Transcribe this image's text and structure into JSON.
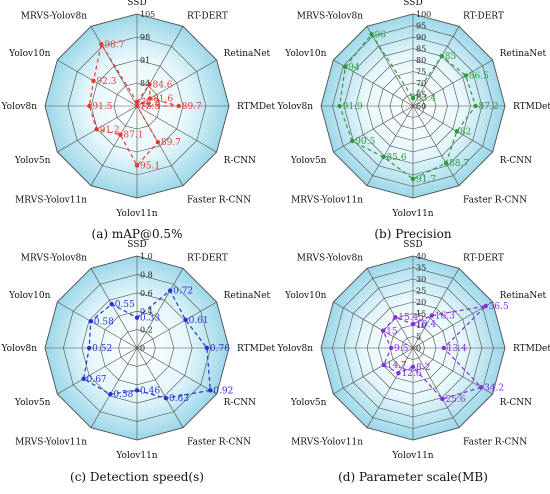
{
  "chart_data": [
    {
      "type": "radar",
      "caption": "(a) mAP@0.5%",
      "axes": [
        "SSD",
        "RT-DERT",
        "RetinaNet",
        "RTMDet",
        "R-CNN",
        "Faster R-CNN",
        "Yolov11n",
        "MRVS-Yolov11n",
        "Yolov5n",
        "Yolov8n",
        "Yolov10n",
        "MRVS-Yolov8n"
      ],
      "ticks": [
        "77",
        "84",
        "91",
        "98",
        "105"
      ],
      "range": [
        77,
        105
      ],
      "values": [
        78.2,
        84.6,
        81.6,
        89.7,
        75.3,
        89.7,
        95.1,
        87.1,
        91.2,
        91.5,
        92.3,
        98.7
      ],
      "labels": [
        "78.2",
        "84.6",
        "81.6",
        "89.7",
        "75.3",
        "89.7",
        "95.1",
        "87.1",
        "91.2",
        "91.5",
        "92.3",
        "98.7"
      ],
      "color": "#e8392f"
    },
    {
      "type": "radar",
      "caption": "(b) Precision",
      "axes": [
        "SSD",
        "RT-DERT",
        "RetinaNet",
        "RTMDet",
        "R-CNN",
        "Faster R-CNN",
        "Yolov11n",
        "MRVS-Yolov11n",
        "Yolov5n",
        "Yolov8n",
        "Yolov10n",
        "MRVS-Yolov8n"
      ],
      "ticks": [
        "60",
        "65",
        "70",
        "75",
        "80",
        "85",
        "90",
        "95",
        "100"
      ],
      "range": [
        60,
        100
      ],
      "values": [
        63.4,
        85,
        86.5,
        87.2,
        82,
        88.7,
        91.7,
        85.6,
        90.5,
        91.9,
        94,
        96
      ],
      "labels": [
        "63.4",
        "85",
        "86.5",
        "87.2",
        "82",
        "88.7",
        "91.7",
        "85.6",
        "90.5",
        "91.9",
        "94",
        "96"
      ],
      "color": "#2e9a3a"
    },
    {
      "type": "radar",
      "caption": "(c) Detection speed(s)",
      "axes": [
        "SSD",
        "RT-DERT",
        "RetinaNet",
        "RTMDet",
        "R-CNN",
        "Faster R-CNN",
        "Yolov11n",
        "MRVS-Yolov11n",
        "Yolov5n",
        "Yolov8n",
        "Yolov10n",
        "MRVS-Yolov8n"
      ],
      "ticks": [
        "0",
        "0.2",
        "0.4",
        "0.6",
        "0.8",
        "1.0"
      ],
      "range": [
        0,
        1.0
      ],
      "values": [
        0.33,
        0.72,
        0.61,
        0.76,
        0.92,
        0.63,
        0.46,
        0.58,
        0.67,
        0.52,
        0.58,
        0.55
      ],
      "labels": [
        "0.33",
        "0.72",
        "0.61",
        "0.76",
        "0.92",
        "0.63",
        "0.46",
        "0.58",
        "0.67",
        "0.52",
        "0.58",
        "0.55"
      ],
      "color": "#2430d8"
    },
    {
      "type": "radar",
      "caption": "(d) Parameter scale(MB)",
      "axes": [
        "SSD",
        "RT-DERT",
        "RetinaNet",
        "RTMDet",
        "R-CNN",
        "Faster R-CNN",
        "Yolov11n",
        "MRVS-Yolov11n",
        "Yolov5n",
        "Yolov8n",
        "Yolov10n",
        "MRVS-Yolov8n"
      ],
      "ticks": [
        "0",
        "5",
        "10",
        "15",
        "20",
        "25",
        "30",
        "35",
        "40"
      ],
      "range": [
        0,
        40
      ],
      "values": [
        10.4,
        16.3,
        36.5,
        13.4,
        34.2,
        25.6,
        8.2,
        12.6,
        14.7,
        9.5,
        15,
        15.45
      ],
      "labels": [
        "10.4",
        "16.3",
        "36.5",
        "13.4",
        "34.2",
        "25.6",
        "8.2",
        "12.6",
        "14.7",
        "9.5",
        "15",
        "15.45"
      ],
      "color": "#8a2be2"
    }
  ]
}
